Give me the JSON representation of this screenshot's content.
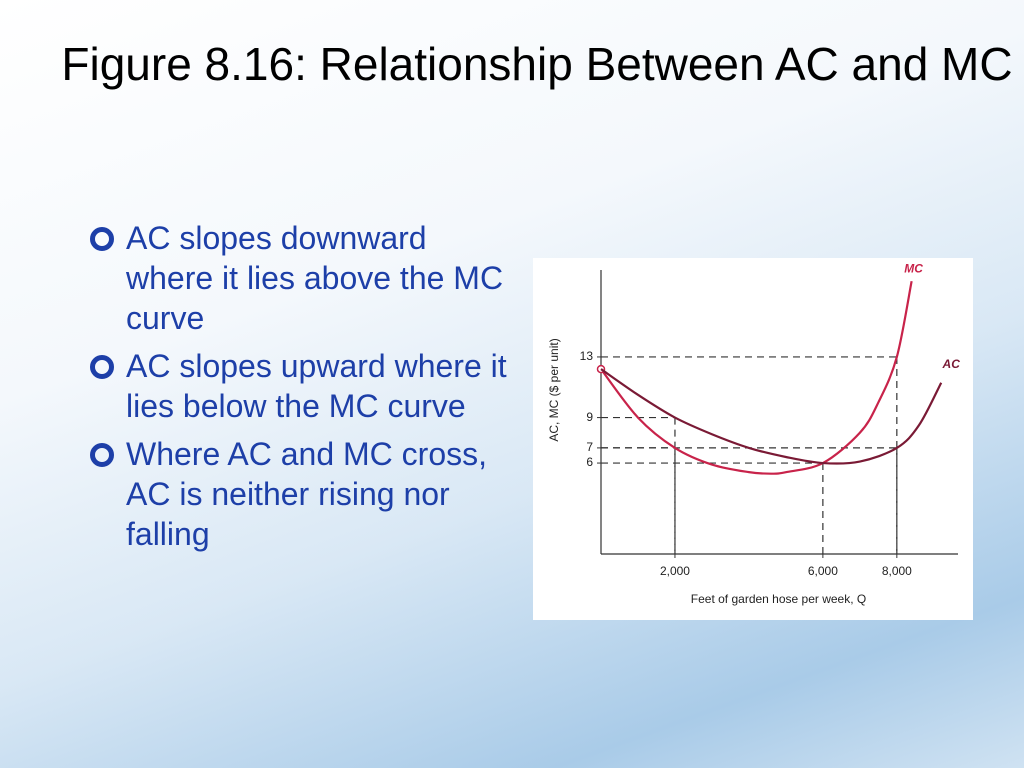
{
  "header": {
    "title": "Figure 8.16: Relationship Between AC and MC"
  },
  "bullets": [
    "AC slopes downward where it lies above the MC curve",
    "AC slopes upward where it lies below the MC curve",
    "Where AC and MC cross, AC is neither rising nor falling"
  ],
  "chart_data": {
    "type": "line",
    "x_label": "Feet of garden hose per week, Q",
    "y_label": "AC, MC ($ per unit)",
    "xlim": [
      0,
      9600
    ],
    "ylim": [
      0,
      19
    ],
    "xticks": [
      {
        "value": 2000,
        "label": "2,000"
      },
      {
        "value": 6000,
        "label": "6,000"
      },
      {
        "value": 8000,
        "label": "8,000"
      }
    ],
    "yticks": [
      6,
      7,
      9,
      13
    ],
    "reference_points": [
      {
        "x": 2000,
        "y": 9
      },
      {
        "x": 2000,
        "y": 7
      },
      {
        "x": 6000,
        "y": 6
      },
      {
        "x": 8000,
        "y": 13
      },
      {
        "x": 8000,
        "y": 7
      }
    ],
    "series": [
      {
        "name": "MC",
        "color": "#c8234a",
        "x": [
          0,
          1000,
          2000,
          3000,
          4000,
          4600,
          5000,
          6000,
          7000,
          7500,
          8000,
          8400
        ],
        "values": [
          12.2,
          9.0,
          7,
          5.9,
          5.4,
          5.3,
          5.4,
          6,
          8,
          10,
          13,
          18
        ]
      },
      {
        "name": "AC",
        "color": "#7a1a35",
        "x": [
          0,
          1000,
          2000,
          3000,
          4000,
          5000,
          6000,
          7000,
          8000,
          8600,
          9200
        ],
        "values": [
          12.2,
          10.5,
          9,
          7.9,
          7,
          6.4,
          6,
          6.1,
          7,
          8.5,
          11.3
        ]
      }
    ]
  }
}
